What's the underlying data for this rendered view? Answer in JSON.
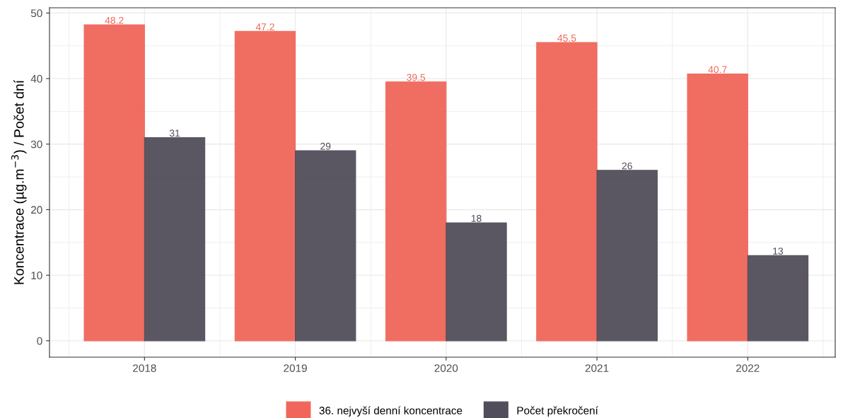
{
  "chart_data": {
    "type": "bar",
    "ylabel": "Koncentrace (µg.m$^{−3}$) / Počet dní",
    "categories": [
      "2018",
      "2019",
      "2020",
      "2021",
      "2022"
    ],
    "series": [
      {
        "name": "36. nejvyší denní koncentrace",
        "color": "#f0665a",
        "values": [
          48.2,
          47.2,
          39.5,
          45.5,
          40.7
        ],
        "value_labels": [
          "48.2",
          "47.2",
          "39.5",
          "45.5",
          "40.7"
        ]
      },
      {
        "name": "Počet překročení",
        "color": "#524d5a",
        "values": [
          31,
          29,
          18,
          26,
          13
        ],
        "value_labels": [
          "31",
          "29",
          "18",
          "26",
          "13"
        ]
      }
    ],
    "ylim": [
      -2.5,
      50.8
    ],
    "yticks": [
      0,
      10,
      20,
      30,
      40,
      50
    ],
    "grid": true,
    "legend": "bottom"
  }
}
